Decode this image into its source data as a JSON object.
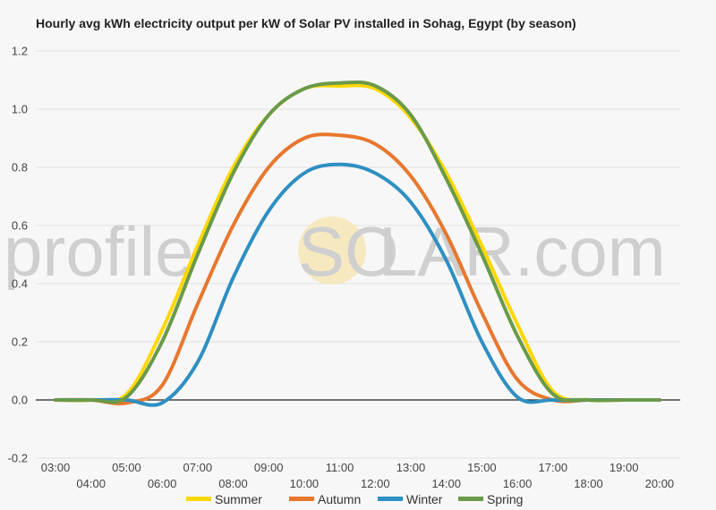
{
  "chart_data": {
    "type": "line",
    "title": "Hourly avg kWh electricity output per kW of Solar PV installed in Sohag, Egypt (by season)",
    "xlabel": "",
    "ylabel": "",
    "ylim": [
      -0.2,
      1.2
    ],
    "xlim": [
      "03:00",
      "20:00"
    ],
    "grid": "horizontal",
    "legend_position": "bottom",
    "x": [
      "03:00",
      "04:00",
      "05:00",
      "06:00",
      "07:00",
      "08:00",
      "09:00",
      "10:00",
      "11:00",
      "12:00",
      "13:00",
      "14:00",
      "15:00",
      "16:00",
      "17:00",
      "18:00",
      "19:00",
      "20:00"
    ],
    "x_tick_labels": [
      "03:00",
      "04:00",
      "05:00",
      "06:00",
      "07:00",
      "08:00",
      "09:00",
      "10:00",
      "11:00",
      "12:00",
      "13:00",
      "14:00",
      "15:00",
      "16:00",
      "17:00",
      "18:00",
      "19:00",
      "20:00"
    ],
    "y_tick_labels": [
      "1.2",
      "1.0",
      "0.8",
      "0.6",
      "0.4",
      "0.2",
      "0.0",
      "-0.2"
    ],
    "y_ticks": [
      1.2,
      1.0,
      0.8,
      0.6,
      0.4,
      0.2,
      0.0,
      -0.2
    ],
    "series": [
      {
        "name": "Summer",
        "color": "#ffd700",
        "values": [
          0,
          0,
          0.02,
          0.24,
          0.53,
          0.8,
          0.98,
          1.07,
          1.08,
          1.07,
          0.97,
          0.78,
          0.53,
          0.26,
          0.03,
          0,
          0,
          0
        ]
      },
      {
        "name": "Autumn",
        "color": "#e8772e",
        "values": [
          0,
          0,
          -0.01,
          0.05,
          0.33,
          0.6,
          0.8,
          0.9,
          0.91,
          0.88,
          0.77,
          0.57,
          0.3,
          0.07,
          0,
          0,
          0,
          0
        ]
      },
      {
        "name": "Winter",
        "color": "#2e8fc2",
        "values": [
          0,
          0,
          0,
          -0.01,
          0.13,
          0.42,
          0.65,
          0.78,
          0.81,
          0.78,
          0.68,
          0.48,
          0.2,
          0.01,
          0,
          0,
          0,
          0
        ]
      },
      {
        "name": "Spring",
        "color": "#6a9a4a",
        "values": [
          0,
          0,
          0.01,
          0.2,
          0.5,
          0.78,
          0.98,
          1.07,
          1.09,
          1.08,
          0.98,
          0.76,
          0.5,
          0.22,
          0.02,
          0,
          0,
          0
        ]
      }
    ]
  },
  "watermark": {
    "left": "profile",
    "sun": "SO",
    "right": "LAR.com"
  }
}
